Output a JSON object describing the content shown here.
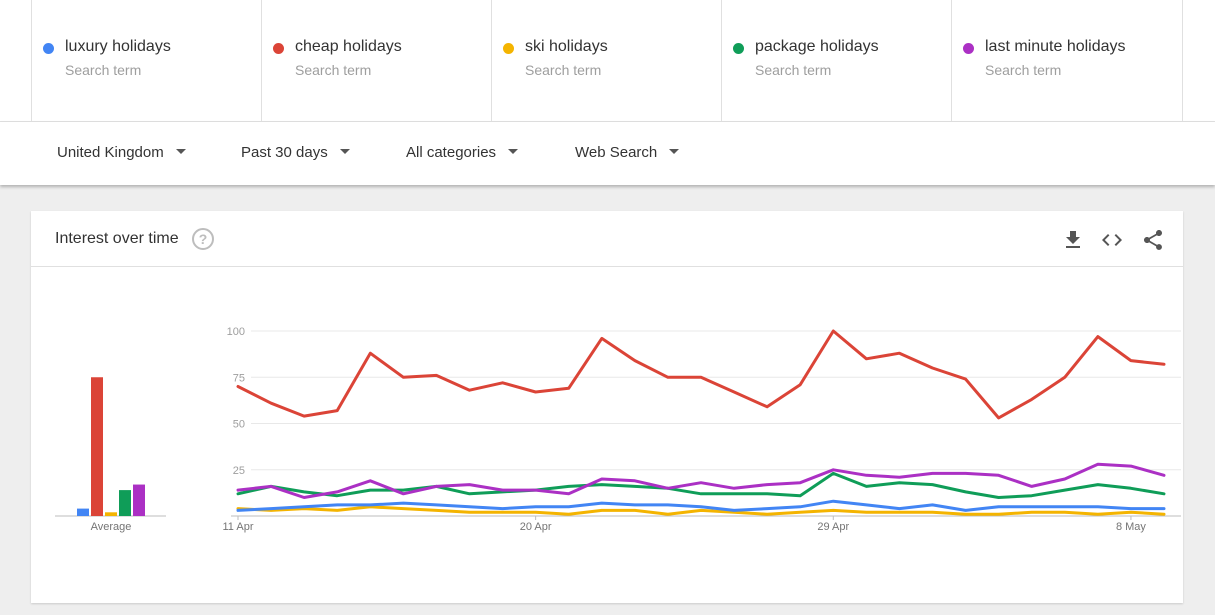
{
  "terms": [
    {
      "name": "luxury holidays",
      "sub": "Search term",
      "color": "#4285f4"
    },
    {
      "name": "cheap holidays",
      "sub": "Search term",
      "color": "#db4437"
    },
    {
      "name": "ski holidays",
      "sub": "Search term",
      "color": "#f4b400"
    },
    {
      "name": "package holidays",
      "sub": "Search term",
      "color": "#0f9d58"
    },
    {
      "name": "last minute holidays",
      "sub": "Search term",
      "color": "#ab30c4"
    }
  ],
  "filters": {
    "region": "United Kingdom",
    "period": "Past 30 days",
    "category": "All categories",
    "search_type": "Web Search"
  },
  "card": {
    "title": "Interest over time",
    "help_glyph": "?",
    "icons": [
      "download-icon",
      "embed-code-icon",
      "share-icon"
    ]
  },
  "chart_data": [
    {
      "type": "bar",
      "categories": [
        "Average"
      ],
      "series": [
        {
          "name": "luxury holidays",
          "color": "#4285f4",
          "values": [
            4
          ]
        },
        {
          "name": "cheap holidays",
          "color": "#db4437",
          "values": [
            75
          ]
        },
        {
          "name": "ski holidays",
          "color": "#f4b400",
          "values": [
            2
          ]
        },
        {
          "name": "package holidays",
          "color": "#0f9d58",
          "values": [
            14
          ]
        },
        {
          "name": "last minute holidays",
          "color": "#ab30c4",
          "values": [
            17
          ]
        }
      ],
      "ylim": [
        0,
        100
      ]
    },
    {
      "type": "line",
      "x_tick_labels": [
        "11 Apr",
        "20 Apr",
        "29 Apr",
        "8 May"
      ],
      "x_tick_index": [
        0,
        9,
        18,
        27
      ],
      "y_ticks": [
        25,
        50,
        75,
        100
      ],
      "ylim": [
        0,
        100
      ],
      "grid": true,
      "series": [
        {
          "name": "cheap holidays",
          "color": "#db4437",
          "values": [
            70,
            61,
            54,
            57,
            88,
            75,
            76,
            68,
            72,
            67,
            69,
            96,
            84,
            75,
            75,
            67,
            59,
            71,
            100,
            85,
            88,
            80,
            74,
            53,
            63,
            75,
            97,
            84,
            82
          ]
        },
        {
          "name": "last minute holidays",
          "color": "#ab30c4",
          "values": [
            14,
            16,
            10,
            13,
            19,
            12,
            16,
            17,
            14,
            14,
            12,
            20,
            19,
            15,
            18,
            15,
            17,
            18,
            25,
            22,
            21,
            23,
            23,
            22,
            16,
            20,
            28,
            27,
            22
          ]
        },
        {
          "name": "package holidays",
          "color": "#0f9d58",
          "values": [
            12,
            16,
            13,
            11,
            14,
            14,
            16,
            12,
            13,
            14,
            16,
            17,
            16,
            15,
            12,
            12,
            12,
            11,
            23,
            16,
            18,
            17,
            13,
            10,
            11,
            14,
            17,
            15,
            12
          ]
        },
        {
          "name": "luxury holidays",
          "color": "#4285f4",
          "values": [
            3,
            4,
            5,
            6,
            6,
            7,
            6,
            5,
            4,
            5,
            5,
            7,
            6,
            6,
            5,
            3,
            4,
            5,
            8,
            6,
            4,
            6,
            3,
            5,
            5,
            5,
            5,
            4,
            4
          ]
        },
        {
          "name": "ski holidays",
          "color": "#f4b400",
          "values": [
            4,
            3,
            4,
            3,
            5,
            4,
            3,
            2,
            2,
            2,
            1,
            3,
            3,
            1,
            3,
            2,
            1,
            2,
            3,
            2,
            2,
            2,
            1,
            1,
            2,
            2,
            1,
            2,
            1
          ]
        }
      ]
    }
  ]
}
